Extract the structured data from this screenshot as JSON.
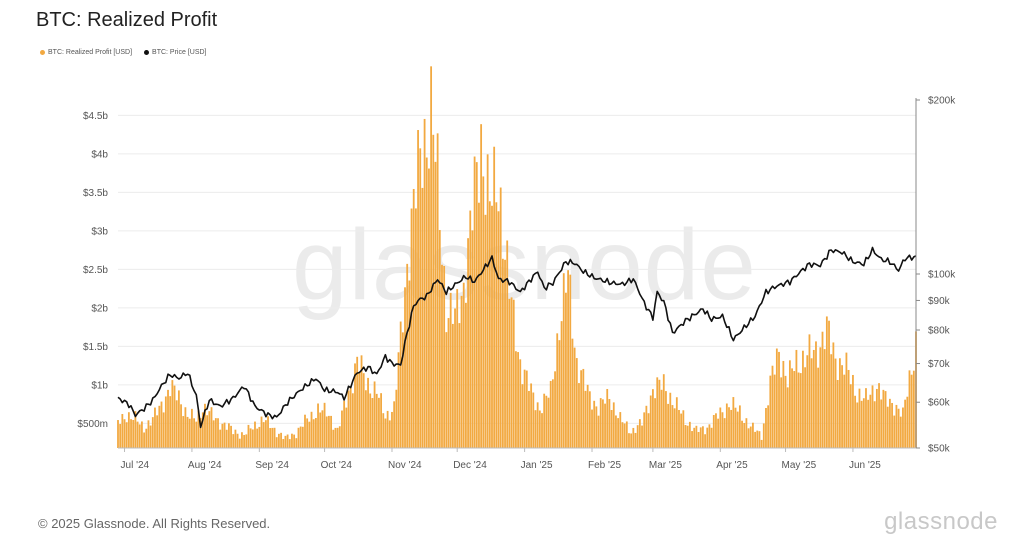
{
  "title": "BTC: Realized Profit",
  "legend": [
    {
      "label": "BTC: Realized Profit [USD]",
      "color": "#f2a941"
    },
    {
      "label": "BTC: Price [USD]",
      "color": "#111111"
    }
  ],
  "footer": "© 2025 Glassnode. All Rights Reserved.",
  "logo": "glassnode",
  "watermark": "glassnode",
  "chart_data": {
    "type": "bar+line",
    "x_tick_labels": [
      "Jul '24",
      "Aug '24",
      "Sep '24",
      "Oct '24",
      "Nov '24",
      "Dec '24",
      "Jan '25",
      "Feb '25",
      "Mar '25",
      "Apr '25",
      "May '25",
      "Jun '25"
    ],
    "x_range": [
      "2024-06-28",
      "2025-06-30"
    ],
    "left_axis": {
      "ticks": [
        "$500m",
        "$1b",
        "$1.5b",
        "$2b",
        "$2.5b",
        "$3b",
        "$3.5b",
        "$4b",
        "$4.5b"
      ],
      "tick_values": [
        0.5,
        1,
        1.5,
        2,
        2.5,
        3,
        3.5,
        4,
        4.5
      ],
      "unit": "billion USD",
      "ylim": [
        0.18,
        4.7
      ]
    },
    "right_axis": {
      "ticks": [
        "$50k",
        "$60k",
        "$70k",
        "$80k",
        "$90k",
        "$100k",
        "$200k"
      ],
      "tick_values": [
        50000,
        60000,
        70000,
        80000,
        90000,
        100000,
        200000
      ],
      "scale": "log",
      "ylim": [
        50000,
        200000
      ]
    },
    "grid": "horizontal",
    "series": [
      {
        "name": "BTC: Realized Profit [USD]",
        "kind": "bar",
        "color": "#f2a941",
        "anchor_dates": [
          "2024-06-28",
          "2024-07-02",
          "2024-07-06",
          "2024-07-10",
          "2024-07-14",
          "2024-07-18",
          "2024-07-22",
          "2024-07-26",
          "2024-07-30",
          "2024-08-03",
          "2024-08-06",
          "2024-08-10",
          "2024-08-15",
          "2024-08-20",
          "2024-08-25",
          "2024-08-30",
          "2024-09-03",
          "2024-09-08",
          "2024-09-13",
          "2024-09-18",
          "2024-09-23",
          "2024-09-28",
          "2024-10-03",
          "2024-10-07",
          "2024-10-12",
          "2024-10-16",
          "2024-10-20",
          "2024-10-25",
          "2024-10-29",
          "2024-11-02",
          "2024-11-05",
          "2024-11-09",
          "2024-11-12",
          "2024-11-15",
          "2024-11-19",
          "2024-11-22",
          "2024-11-26",
          "2024-11-30",
          "2024-12-04",
          "2024-12-08",
          "2024-12-12",
          "2024-12-16",
          "2024-12-20",
          "2024-12-25",
          "2024-12-30",
          "2025-01-04",
          "2025-01-08",
          "2025-01-13",
          "2025-01-17",
          "2025-01-21",
          "2025-01-25",
          "2025-01-30",
          "2025-02-04",
          "2025-02-09",
          "2025-02-14",
          "2025-02-19",
          "2025-02-24",
          "2025-03-01",
          "2025-03-06",
          "2025-03-11",
          "2025-03-16",
          "2025-03-21",
          "2025-03-26",
          "2025-03-31",
          "2025-04-05",
          "2025-04-10",
          "2025-04-15",
          "2025-04-20",
          "2025-04-24",
          "2025-04-28",
          "2025-05-02",
          "2025-05-06",
          "2025-05-10",
          "2025-05-15",
          "2025-05-20",
          "2025-05-24",
          "2025-05-29",
          "2025-06-03",
          "2025-06-07",
          "2025-06-12",
          "2025-06-16",
          "2025-06-20",
          "2025-06-24",
          "2025-06-28",
          "2025-06-30"
        ],
        "anchor_values_billion": [
          0.5,
          0.62,
          0.55,
          0.45,
          0.55,
          0.75,
          0.95,
          0.85,
          0.6,
          0.55,
          0.72,
          0.6,
          0.5,
          0.4,
          0.35,
          0.48,
          0.55,
          0.42,
          0.3,
          0.38,
          0.55,
          0.68,
          0.62,
          0.4,
          0.9,
          1.3,
          1.05,
          0.9,
          0.6,
          0.7,
          1.6,
          2.9,
          3.5,
          4.1,
          4.55,
          3.6,
          2.0,
          1.85,
          2.3,
          3.2,
          4.2,
          3.3,
          3.65,
          2.2,
          1.3,
          0.9,
          0.7,
          0.9,
          1.8,
          2.4,
          1.3,
          0.9,
          0.7,
          0.85,
          0.55,
          0.4,
          0.5,
          0.95,
          1.0,
          0.75,
          0.55,
          0.4,
          0.45,
          0.6,
          0.75,
          0.65,
          0.45,
          0.35,
          1.0,
          1.45,
          1.05,
          1.3,
          1.35,
          1.45,
          1.7,
          1.35,
          1.2,
          0.9,
          0.8,
          1.0,
          0.8,
          0.75,
          0.6,
          1.25,
          1.55
        ]
      },
      {
        "name": "BTC: Price [USD]",
        "kind": "line",
        "color": "#111111",
        "anchor_dates": [
          "2024-06-28",
          "2024-07-03",
          "2024-07-06",
          "2024-07-10",
          "2024-07-14",
          "2024-07-18",
          "2024-07-22",
          "2024-07-26",
          "2024-07-30",
          "2024-08-03",
          "2024-08-05",
          "2024-08-09",
          "2024-08-14",
          "2024-08-20",
          "2024-08-25",
          "2024-08-30",
          "2024-09-05",
          "2024-09-09",
          "2024-09-14",
          "2024-09-20",
          "2024-09-27",
          "2024-10-01",
          "2024-10-07",
          "2024-10-10",
          "2024-10-16",
          "2024-10-21",
          "2024-10-25",
          "2024-10-29",
          "2024-11-01",
          "2024-11-05",
          "2024-11-07",
          "2024-11-11",
          "2024-11-13",
          "2024-11-17",
          "2024-11-22",
          "2024-11-26",
          "2024-12-01",
          "2024-12-05",
          "2024-12-09",
          "2024-12-12",
          "2024-12-17",
          "2024-12-20",
          "2024-12-25",
          "2024-12-30",
          "2025-01-02",
          "2025-01-07",
          "2025-01-10",
          "2025-01-14",
          "2025-01-20",
          "2025-01-24",
          "2025-01-28",
          "2025-02-02",
          "2025-02-06",
          "2025-02-10",
          "2025-02-15",
          "2025-02-20",
          "2025-02-25",
          "2025-03-01",
          "2025-03-03",
          "2025-03-06",
          "2025-03-10",
          "2025-03-16",
          "2025-03-24",
          "2025-03-28",
          "2025-04-02",
          "2025-04-07",
          "2025-04-11",
          "2025-04-17",
          "2025-04-22",
          "2025-04-26",
          "2025-05-03",
          "2025-05-08",
          "2025-05-12",
          "2025-05-17",
          "2025-05-22",
          "2025-05-27",
          "2025-06-01",
          "2025-06-06",
          "2025-06-10",
          "2025-06-14",
          "2025-06-18",
          "2025-06-22",
          "2025-06-25",
          "2025-06-30"
        ],
        "anchor_values": [
          61000,
          59500,
          57000,
          58500,
          60500,
          64000,
          67000,
          66000,
          67500,
          61500,
          54500,
          60500,
          59000,
          61000,
          64000,
          59000,
          57000,
          56500,
          60000,
          63000,
          66000,
          63000,
          62500,
          61000,
          67500,
          69000,
          67000,
          72000,
          70000,
          69500,
          76000,
          88000,
          90000,
          91500,
          98000,
          93000,
          96500,
          99000,
          97000,
          100500,
          106500,
          98000,
          97000,
          93000,
          96000,
          101000,
          94500,
          96500,
          105000,
          104500,
          101000,
          98500,
          97500,
          96500,
          96000,
          98000,
          89000,
          84000,
          93000,
          89500,
          79000,
          83000,
          87000,
          83500,
          84500,
          77000,
          80000,
          84500,
          93000,
          95000,
          97000,
          101000,
          104000,
          103500,
          110000,
          109000,
          105000,
          104000,
          110000,
          106000,
          105000,
          101500,
          106500,
          107000
        ]
      }
    ]
  }
}
